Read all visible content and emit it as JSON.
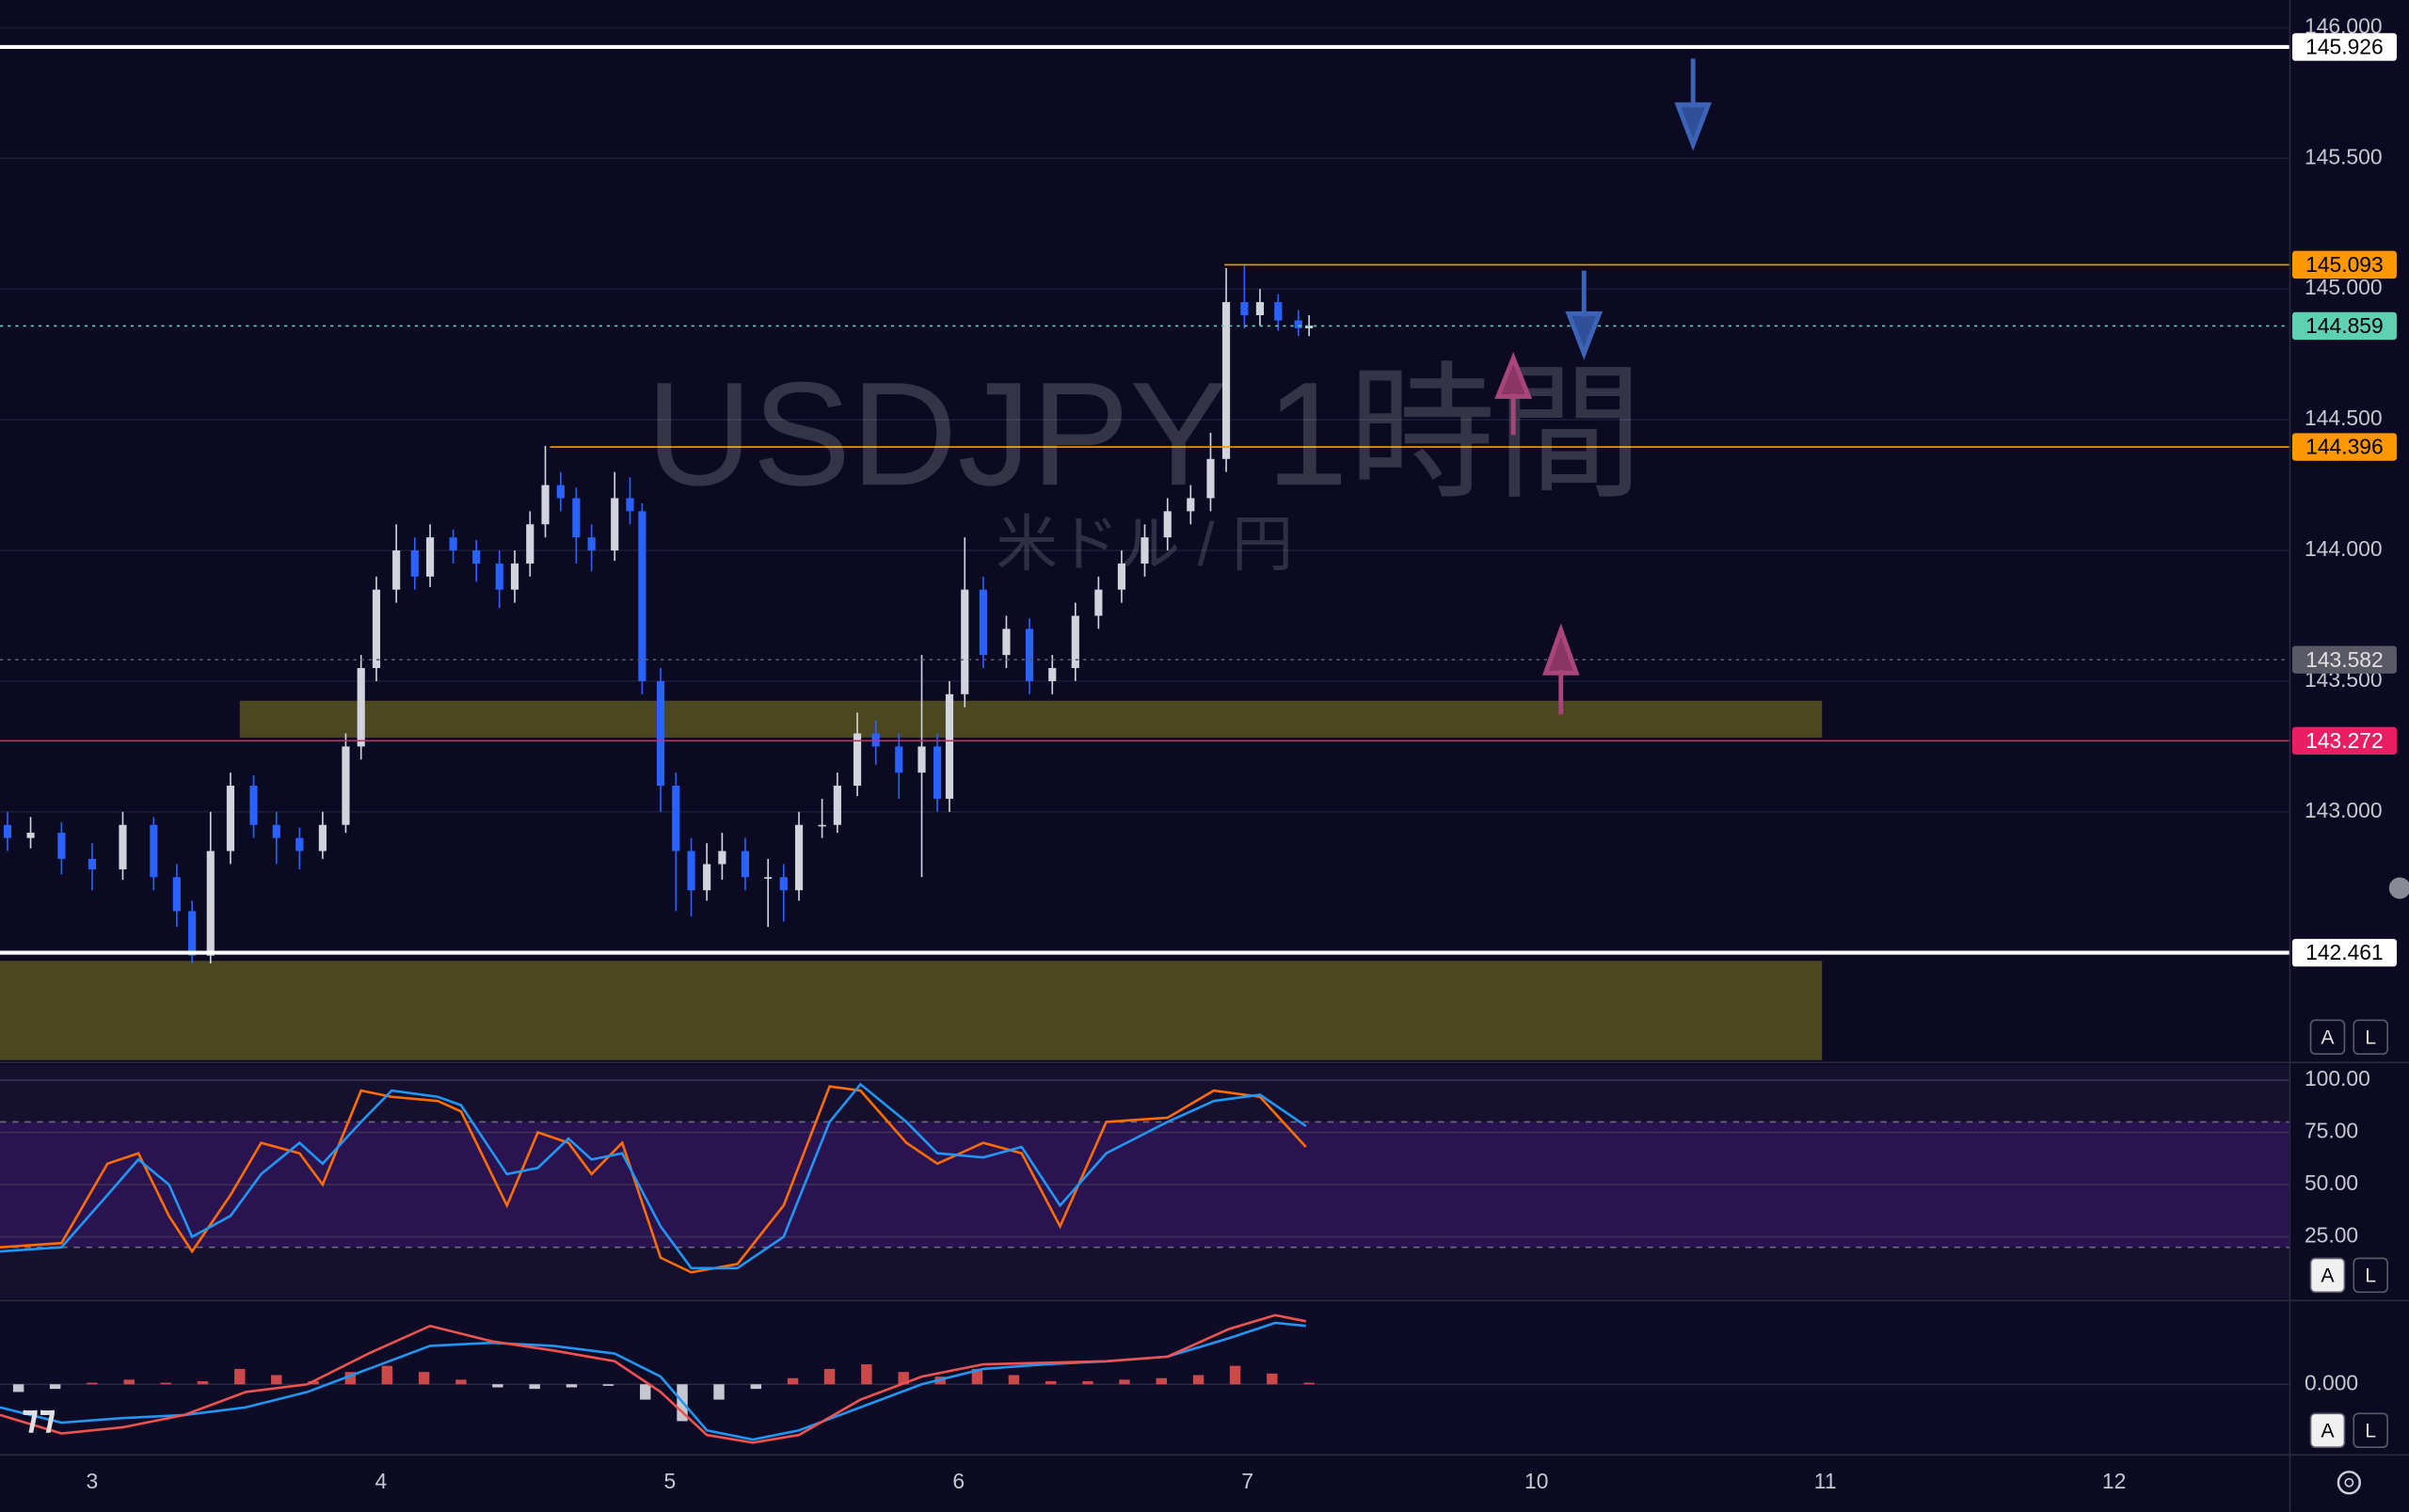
{
  "chart_data": [
    {
      "type": "candlestick",
      "title": "USDJPY 1時間",
      "subtitle": "米ドル / 円",
      "xlim": [
        -0.319,
        7.606
      ],
      "xticks": [
        {
          "value": 0,
          "label": "3"
        },
        {
          "value": 1,
          "label": "4"
        },
        {
          "value": 2,
          "label": "5"
        },
        {
          "value": 3,
          "label": "6"
        },
        {
          "value": 4,
          "label": "7"
        },
        {
          "value": 5,
          "label": "10"
        },
        {
          "value": 6,
          "label": "11"
        },
        {
          "value": 7,
          "label": "12"
        }
      ],
      "ylim": [
        142.05,
        146.105
      ],
      "yticks": [
        {
          "value": 146,
          "label": "146.000"
        },
        {
          "value": 145.5,
          "label": "145.500"
        },
        {
          "value": 145,
          "label": "145.000"
        },
        {
          "value": 144.5,
          "label": "144.500"
        },
        {
          "value": 144,
          "label": "144.000"
        },
        {
          "value": 143.5,
          "label": "143.500"
        },
        {
          "value": 143,
          "label": "143.000"
        }
      ],
      "grid": true,
      "up_color": "#d1d4dc",
      "down_color": "#2962ff",
      "x": [
        -0.293,
        -0.213,
        -0.106,
        0,
        0.106,
        0.213,
        0.293,
        0.346,
        0.41,
        0.479,
        0.559,
        0.638,
        0.718,
        0.798,
        0.878,
        0.931,
        0.984,
        1.053,
        1.117,
        1.17,
        1.25,
        1.33,
        1.41,
        1.463,
        1.516,
        1.569,
        1.622,
        1.676,
        1.729,
        1.809,
        1.862,
        1.904,
        1.968,
        2.021,
        2.074,
        2.128,
        2.181,
        2.261,
        2.34,
        2.394,
        2.447,
        2.527,
        2.58,
        2.649,
        2.713,
        2.793,
        2.872,
        2.926,
        2.968,
        3.021,
        3.085,
        3.165,
        3.245,
        3.324,
        3.404,
        3.484,
        3.564,
        3.644,
        3.723,
        3.803,
        3.872,
        3.926,
        3.989,
        4.043,
        4.106,
        4.176,
        4.213
      ],
      "open": [
        142.95,
        142.9,
        142.92,
        142.82,
        142.78,
        142.95,
        142.75,
        142.62,
        142.45,
        142.85,
        143.1,
        142.95,
        142.9,
        142.85,
        142.95,
        143.25,
        143.55,
        143.85,
        144.0,
        143.9,
        144.05,
        144.0,
        143.95,
        143.85,
        143.95,
        144.1,
        144.25,
        144.2,
        144.05,
        144.0,
        144.2,
        144.15,
        143.5,
        143.1,
        142.85,
        142.7,
        142.8,
        142.85,
        142.75,
        142.75,
        142.7,
        142.95,
        142.95,
        143.1,
        143.3,
        143.25,
        143.15,
        143.25,
        143.05,
        143.45,
        143.85,
        143.6,
        143.7,
        143.5,
        143.55,
        143.75,
        143.85,
        143.95,
        144.05,
        144.15,
        144.2,
        144.35,
        144.95,
        144.9,
        144.95,
        144.88,
        144.85
      ],
      "high": [
        143.0,
        142.98,
        142.96,
        142.88,
        143.0,
        142.98,
        142.8,
        142.66,
        143.0,
        143.15,
        143.14,
        143.0,
        142.94,
        143.0,
        143.3,
        143.6,
        143.9,
        144.1,
        144.05,
        144.1,
        144.08,
        144.04,
        144.0,
        144.0,
        144.15,
        144.4,
        144.3,
        144.24,
        144.1,
        144.3,
        144.28,
        144.18,
        143.55,
        143.15,
        142.9,
        142.88,
        142.92,
        142.9,
        142.82,
        142.8,
        143.0,
        143.05,
        143.15,
        143.38,
        143.35,
        143.3,
        143.6,
        143.3,
        143.5,
        144.05,
        143.9,
        143.75,
        143.74,
        143.6,
        143.8,
        143.9,
        144.0,
        144.1,
        144.2,
        144.25,
        144.45,
        145.08,
        145.09,
        145.0,
        144.98,
        144.92,
        144.9
      ],
      "low": [
        142.85,
        142.86,
        142.76,
        142.7,
        142.74,
        142.7,
        142.56,
        142.42,
        142.42,
        142.8,
        142.9,
        142.8,
        142.78,
        142.82,
        142.92,
        143.2,
        143.5,
        143.8,
        143.85,
        143.86,
        143.95,
        143.88,
        143.78,
        143.8,
        143.9,
        144.05,
        144.15,
        143.95,
        143.92,
        143.96,
        144.1,
        143.45,
        143.0,
        142.62,
        142.6,
        142.66,
        142.74,
        142.7,
        142.56,
        142.58,
        142.66,
        142.9,
        142.92,
        143.06,
        143.18,
        143.05,
        142.75,
        143.0,
        143.0,
        143.4,
        143.55,
        143.55,
        143.45,
        143.45,
        143.5,
        143.7,
        143.8,
        143.9,
        144.0,
        144.1,
        144.15,
        144.3,
        144.85,
        144.86,
        144.84,
        144.82,
        144.82
      ],
      "close": [
        142.9,
        142.92,
        142.82,
        142.78,
        142.95,
        142.75,
        142.62,
        142.45,
        142.85,
        143.1,
        142.95,
        142.9,
        142.85,
        142.95,
        143.25,
        143.55,
        143.85,
        144.0,
        143.9,
        144.05,
        144.0,
        143.95,
        143.85,
        143.95,
        144.1,
        144.25,
        144.2,
        144.05,
        144.0,
        144.2,
        144.15,
        143.5,
        143.1,
        142.85,
        142.7,
        142.8,
        142.85,
        142.75,
        142.75,
        142.7,
        142.95,
        142.95,
        143.1,
        143.3,
        143.25,
        143.15,
        143.25,
        143.05,
        143.45,
        143.85,
        143.6,
        143.7,
        143.5,
        143.55,
        143.75,
        143.85,
        143.95,
        144.05,
        144.15,
        144.2,
        144.35,
        144.95,
        144.9,
        144.95,
        144.88,
        144.85,
        144.86
      ],
      "levels": [
        {
          "value": 145.926,
          "color": "#ffffff",
          "text_color": "#000000",
          "style": "solid",
          "x_from": -0.319
        },
        {
          "value": 145.093,
          "color": "#ff9800",
          "text_color": "#000000",
          "style": "solid",
          "x_from": 3.92
        },
        {
          "value": 144.859,
          "color": "#5fd1b3",
          "text_color": "#000000",
          "style": "dotted",
          "x_from": -0.319
        },
        {
          "value": 144.396,
          "color": "#ff9800",
          "text_color": "#000000",
          "style": "solid",
          "x_from": 1.585
        },
        {
          "value": 143.582,
          "color": "#5a5a66",
          "text_color": "#e0e0e0",
          "style": "dotted",
          "x_from": -0.319
        },
        {
          "value": 143.272,
          "color": "#e91e63",
          "text_color": "#ffffff",
          "style": "solid",
          "x_from": -0.319
        },
        {
          "value": 142.461,
          "color": "#ffffff",
          "text_color": "#000000",
          "style": "solid",
          "x_from": -0.319
        }
      ],
      "zones": [
        {
          "from": 143.284,
          "to": 143.425,
          "x_from": 0.511,
          "x_to": 5.989,
          "color": "#8a8420"
        },
        {
          "from": 142.05,
          "to": 142.43,
          "x_from": -0.319,
          "x_to": 5.989,
          "color": "#8a8420"
        }
      ],
      "buttons": [
        "A",
        "L"
      ]
    },
    {
      "type": "stochastic",
      "xlim": [
        -0.319,
        7.606
      ],
      "ylim": [
        -4.4,
        107.35
      ],
      "yticks": [
        {
          "value": 100,
          "label": "100.00"
        },
        {
          "value": 75,
          "label": "75.00"
        },
        {
          "value": 50,
          "label": "50.00"
        },
        {
          "value": 25,
          "label": "25.00"
        }
      ],
      "band": [
        20,
        80
      ],
      "x": [
        -0.319,
        -0.106,
        0.053,
        0.16,
        0.266,
        0.346,
        0.479,
        0.585,
        0.718,
        0.798,
        0.931,
        1.037,
        1.197,
        1.277,
        1.436,
        1.543,
        1.649,
        1.729,
        1.835,
        1.968,
        2.074,
        2.234,
        2.394,
        2.553,
        2.66,
        2.819,
        2.926,
        3.085,
        3.218,
        3.351,
        3.511,
        3.723,
        3.883,
        4.043,
        4.202
      ],
      "series": [
        {
          "color": "#ff6d00",
          "values": [
            20,
            22,
            60,
            65,
            35,
            18,
            45,
            70,
            65,
            50,
            95,
            92,
            90,
            85,
            40,
            75,
            70,
            55,
            70,
            15,
            8,
            12,
            40,
            97,
            95,
            70,
            60,
            70,
            65,
            30,
            80,
            82,
            95,
            92,
            68
          ]
        },
        {
          "color": "#2196f3",
          "values": [
            18,
            20,
            45,
            62,
            50,
            25,
            35,
            55,
            70,
            60,
            80,
            95,
            92,
            88,
            55,
            58,
            72,
            62,
            65,
            30,
            10,
            10,
            25,
            80,
            98,
            80,
            65,
            63,
            68,
            40,
            65,
            80,
            90,
            93,
            78
          ]
        }
      ],
      "buttons": [
        "A",
        "L"
      ]
    },
    {
      "type": "macd",
      "xlim": [
        -0.319,
        7.606
      ],
      "ylim": [
        -0.45,
        0.53
      ],
      "yticks": [
        {
          "value": 0,
          "label": "0.000"
        }
      ],
      "hist_x": [
        -0.255,
        -0.128,
        0,
        0.128,
        0.255,
        0.383,
        0.511,
        0.638,
        0.766,
        0.894,
        1.021,
        1.149,
        1.277,
        1.404,
        1.532,
        1.66,
        1.787,
        1.915,
        2.043,
        2.17,
        2.298,
        2.426,
        2.553,
        2.681,
        2.809,
        2.936,
        3.064,
        3.191,
        3.319,
        3.447,
        3.574,
        3.702,
        3.83,
        3.957,
        4.085,
        4.213
      ],
      "hist": [
        -0.05,
        -0.03,
        0.01,
        0.03,
        0.01,
        0.02,
        0.1,
        0.06,
        0.02,
        0.08,
        0.12,
        0.08,
        0.03,
        -0.02,
        -0.03,
        -0.02,
        -0.01,
        -0.1,
        -0.24,
        -0.1,
        -0.03,
        0.04,
        0.1,
        0.13,
        0.08,
        0.05,
        0.1,
        0.06,
        0.02,
        0.02,
        0.03,
        0.04,
        0.06,
        0.12,
        0.07,
        0.01
      ],
      "hist_colors": [
        "#ef5350",
        "#e8e8ee"
      ],
      "x": [
        -0.319,
        -0.106,
        0.106,
        0.319,
        0.532,
        0.745,
        0.957,
        1.17,
        1.383,
        1.596,
        1.809,
        1.968,
        2.128,
        2.287,
        2.447,
        2.66,
        2.872,
        3.085,
        3.298,
        3.511,
        3.723,
        3.936,
        4.096,
        4.202
      ],
      "series": [
        {
          "color": "#2196f3",
          "values": [
            -0.15,
            -0.25,
            -0.22,
            -0.2,
            -0.15,
            -0.05,
            0.1,
            0.25,
            0.27,
            0.25,
            0.2,
            0.05,
            -0.3,
            -0.36,
            -0.3,
            -0.15,
            0,
            0.1,
            0.13,
            0.15,
            0.18,
            0.3,
            0.4,
            0.38
          ]
        },
        {
          "color": "#ef5350",
          "values": [
            -0.2,
            -0.32,
            -0.28,
            -0.2,
            -0.05,
            0,
            0.2,
            0.38,
            0.28,
            0.22,
            0.15,
            -0.05,
            -0.33,
            -0.38,
            -0.33,
            -0.1,
            0.05,
            0.13,
            0.14,
            0.15,
            0.18,
            0.36,
            0.45,
            0.41
          ]
        }
      ],
      "buttons": [
        "A",
        "L"
      ]
    }
  ]
}
